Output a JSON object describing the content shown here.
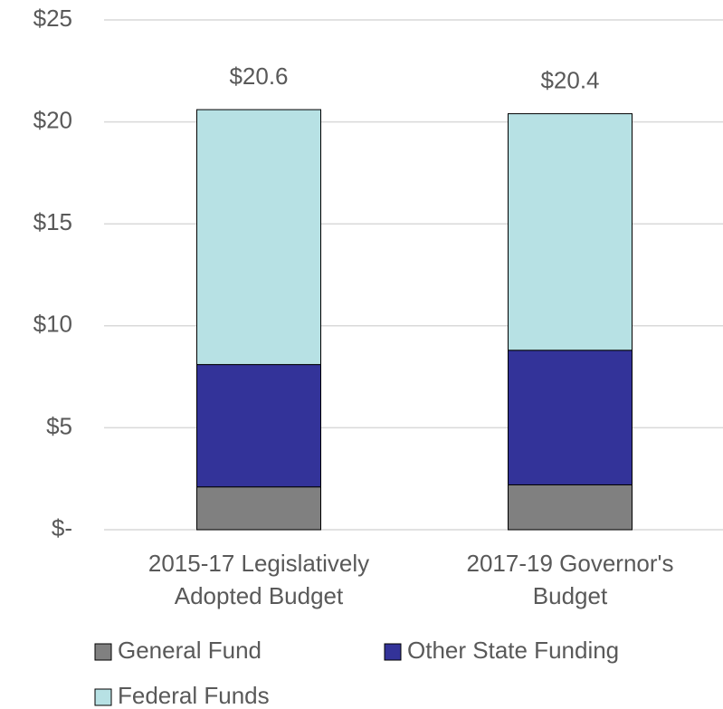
{
  "chart_data": {
    "type": "stacked_bar",
    "categories": [
      [
        "2015-17 Legislatively",
        "Adopted Budget"
      ],
      [
        "2017-19 Governor's",
        "Budget"
      ]
    ],
    "series": [
      {
        "name": "General Fund",
        "color": "#808080",
        "values": [
          2.1,
          2.2
        ]
      },
      {
        "name": "Other State Funding",
        "color": "#333399",
        "values": [
          6.0,
          6.6
        ]
      },
      {
        "name": "Federal Funds",
        "color": "#b7e1e4",
        "values": [
          12.5,
          11.6
        ]
      }
    ],
    "totals": [
      20.6,
      20.4
    ],
    "total_labels": [
      "$20.6",
      "$20.4"
    ],
    "ylim": [
      0,
      25
    ],
    "yticks": [
      {
        "value": 0,
        "label": "$-"
      },
      {
        "value": 5,
        "label": "$5"
      },
      {
        "value": 10,
        "label": "$10"
      },
      {
        "value": 15,
        "label": "$15"
      },
      {
        "value": 20,
        "label": "$20"
      },
      {
        "value": 25,
        "label": "$25"
      }
    ],
    "grid": true
  }
}
